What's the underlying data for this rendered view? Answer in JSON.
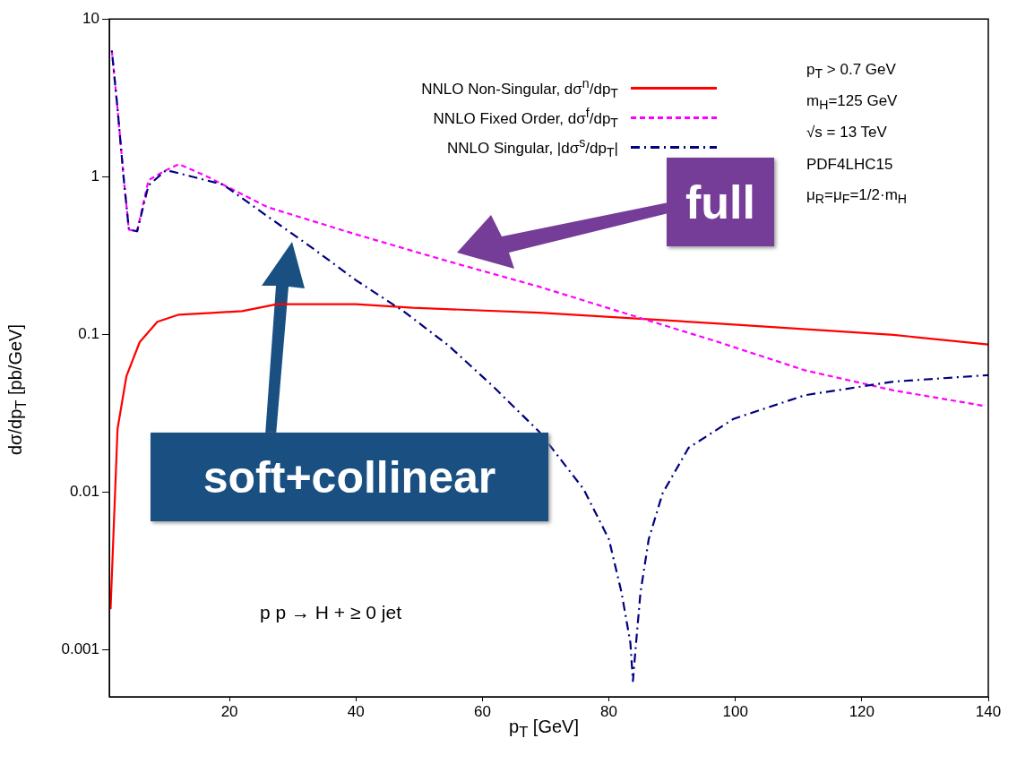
{
  "chart_data": {
    "type": "line",
    "xlabel": "p$_{T}$ [GeV]",
    "ylabel": "dσ/dp$_{T}$ [pb/GeV]",
    "xlim": [
      1,
      140
    ],
    "xticks": [
      20,
      40,
      60,
      80,
      100,
      120,
      140
    ],
    "ylim": [
      0.0005,
      10
    ],
    "yticks": [
      0.001,
      0.01,
      0.1,
      1,
      10
    ],
    "log": "y",
    "grid": false,
    "legend": "top",
    "marker": "none",
    "series": [
      {
        "name": "NNLO Non-Singular, dσ$^{n}$/dp$_{T}$",
        "color": "#ff0000",
        "line_style": "solid",
        "x": [
          1.2,
          2.3,
          3.7,
          5.8,
          8.6,
          12,
          16.5,
          22,
          27.5,
          40,
          49,
          69,
          97,
          125,
          140
        ],
        "values": [
          0.0018,
          0.025,
          0.054,
          0.089,
          0.12,
          0.133,
          0.136,
          0.14,
          0.155,
          0.155,
          0.147,
          0.137,
          0.117,
          0.099,
          0.086
        ]
      },
      {
        "name": "NNLO Fixed Order, dσ$^{f}$/dp$_{T}$",
        "color": "#ff00ff",
        "line_style": "dashed",
        "x": [
          1.4,
          2.3,
          3.3,
          4.1,
          5.4,
          7.2,
          10,
          12,
          16.5,
          26,
          40,
          54.6,
          69,
          83,
          97,
          111,
          125,
          139.5
        ],
        "values": [
          6.3,
          2.7,
          0.95,
          0.46,
          0.45,
          0.95,
          1.1,
          1.2,
          1.0,
          0.64,
          0.43,
          0.29,
          0.2,
          0.134,
          0.09,
          0.059,
          0.044,
          0.035
        ]
      },
      {
        "name": "NNLO Singular, |dσ$^{s}$/dp$_{T}$|",
        "color": "#000080",
        "line_style": "dashdot",
        "x": [
          1.4,
          2.3,
          3.3,
          4.1,
          5.4,
          7.2,
          10,
          19,
          26,
          33,
          40,
          47.5,
          54.6,
          61.6,
          69,
          76,
          80,
          82,
          83.4,
          83.8,
          84.3,
          85,
          86.3,
          88.5,
          92.6,
          99.7,
          111,
          125,
          140
        ],
        "values": [
          6.3,
          2.7,
          0.95,
          0.46,
          0.45,
          0.88,
          1.1,
          0.89,
          0.56,
          0.355,
          0.22,
          0.14,
          0.085,
          0.047,
          0.024,
          0.0104,
          0.005,
          0.0023,
          0.0011,
          0.00063,
          0.0011,
          0.0023,
          0.005,
          0.0098,
          0.019,
          0.029,
          0.041,
          0.05,
          0.055
        ]
      }
    ],
    "annotations": [
      "p$_{T}$ > 0.7 GeV",
      "m$_{H}$=125 GeV",
      "√s  = 13 TeV",
      "PDF4LHC15",
      "μ$_{R}$=μ$_{F}$=1/2·m$_{H}$",
      "p p → H + ≥ 0 jet",
      "soft+collinear",
      "full"
    ]
  }
}
